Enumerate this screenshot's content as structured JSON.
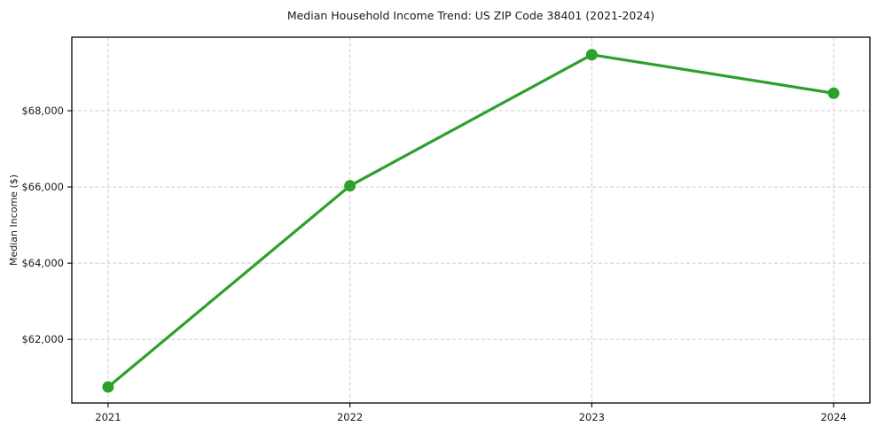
{
  "chart_data": {
    "type": "line",
    "title": "Median Household Income Trend: US ZIP Code 38401 (2021-2024)",
    "xlabel": "",
    "ylabel": "Median Income ($)",
    "x": [
      2021,
      2022,
      2023,
      2024
    ],
    "x_tick_labels": [
      "2021",
      "2022",
      "2023",
      "2024"
    ],
    "series": [
      {
        "name": "Median household income",
        "values": [
          60750,
          66030,
          69470,
          68460
        ]
      }
    ],
    "y_ticks": [
      62000,
      64000,
      66000,
      68000
    ],
    "y_tick_labels": [
      "$62,000",
      "$64,000",
      "$66,000",
      "$68,000"
    ],
    "xlim": [
      2020.85,
      2024.15
    ],
    "ylim": [
      60330,
      69930
    ],
    "grid": true,
    "grid_style": "dashed",
    "legend_position": "none",
    "marker": "circle",
    "line_color": "#2ca02c",
    "marker_color": "#2ca02c",
    "grid_color": "#cccccc",
    "axis_color": "#000000",
    "text_color": "#1a1a1a",
    "background_color": "#ffffff"
  }
}
